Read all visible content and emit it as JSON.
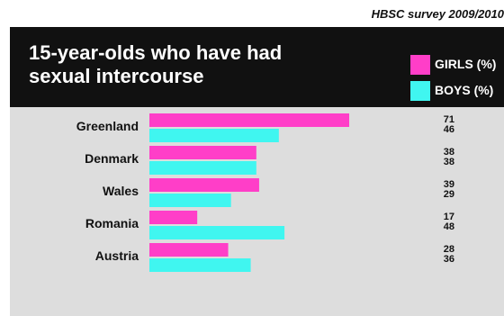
{
  "source": "HBSC survey 2009/2010",
  "colors": {
    "girls": "#ff3ec8",
    "boys": "#40f6f0"
  },
  "chart_data": {
    "type": "bar",
    "orientation": "horizontal",
    "title": "15-year-olds who have had sexual intercourse",
    "categories": [
      "Greenland",
      "Denmark",
      "Wales",
      "Romania",
      "Austria"
    ],
    "series": [
      {
        "name": "GIRLS (%)",
        "values": [
          71,
          38,
          39,
          17,
          28
        ]
      },
      {
        "name": "BOYS (%)",
        "values": [
          46,
          38,
          29,
          48,
          36
        ]
      }
    ],
    "legend": "top-right",
    "grid": false
  }
}
